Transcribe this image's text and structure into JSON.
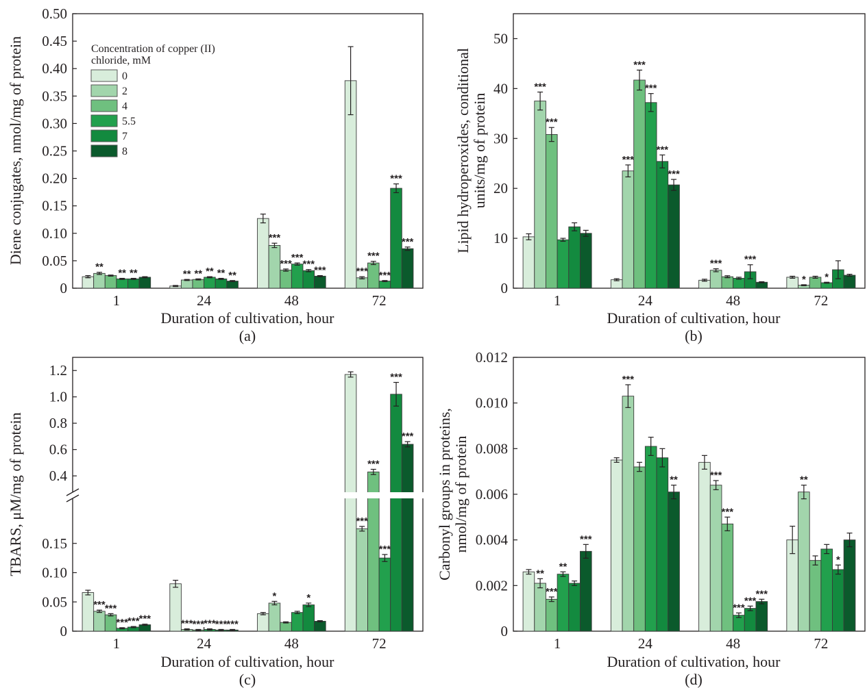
{
  "legend": {
    "title_line1": "Concentration of copper (II)",
    "title_line2": "chloride, mM",
    "entries": [
      "0",
      "2",
      "4",
      "5.5",
      "7",
      "8"
    ]
  },
  "colors": [
    "#d8eddb",
    "#a2d5ac",
    "#6fc07f",
    "#22a04d",
    "#138a3f",
    "#0b5a2c"
  ],
  "chart_data": [
    {
      "id": "a",
      "type": "bar",
      "panel_label": "(a)",
      "xlabel": "Duration of cultivation, hour",
      "ylabel": "Diene conjugates, nmol/mg of protein",
      "categories": [
        "1",
        "24",
        "48",
        "72"
      ],
      "ylim": [
        0,
        0.5
      ],
      "yticks": [
        0,
        0.05,
        0.1,
        0.15,
        0.2,
        0.25,
        0.3,
        0.35,
        0.4,
        0.45,
        0.5
      ],
      "ytick_labels": [
        "0",
        "0.05",
        "0.10",
        "0.15",
        "0.20",
        "0.25",
        "0.30",
        "0.35",
        "0.40",
        "0.45",
        "0.50"
      ],
      "series": [
        {
          "name": "0",
          "values": [
            0.021,
            0.004,
            0.127,
            0.378
          ],
          "errors": [
            0.002,
            0.001,
            0.008,
            0.062
          ],
          "marks": [
            "",
            "",
            "",
            ""
          ]
        },
        {
          "name": "2",
          "values": [
            0.027,
            0.015,
            0.078,
            0.019
          ],
          "errors": [
            0.002,
            0.001,
            0.004,
            0.002
          ],
          "marks": [
            "**",
            "**",
            "***",
            "***"
          ]
        },
        {
          "name": "4",
          "values": [
            0.023,
            0.016,
            0.033,
            0.046
          ],
          "errors": [
            0.001,
            0.001,
            0.002,
            0.003
          ],
          "marks": [
            "",
            "**",
            "***",
            "***"
          ]
        },
        {
          "name": "5.5",
          "values": [
            0.017,
            0.02,
            0.044,
            0.013
          ],
          "errors": [
            0.001,
            0.001,
            0.002,
            0.001
          ],
          "marks": [
            "**",
            "**",
            "***",
            "***"
          ]
        },
        {
          "name": "7",
          "values": [
            0.017,
            0.017,
            0.032,
            0.182
          ],
          "errors": [
            0.001,
            0.001,
            0.002,
            0.008
          ],
          "marks": [
            "**",
            "**",
            "***",
            "***"
          ]
        },
        {
          "name": "8",
          "values": [
            0.02,
            0.013,
            0.022,
            0.072
          ],
          "errors": [
            0.001,
            0.001,
            0.001,
            0.003
          ],
          "marks": [
            "",
            "**",
            "***",
            "***"
          ]
        }
      ]
    },
    {
      "id": "b",
      "type": "bar",
      "panel_label": "(b)",
      "xlabel": "Duration of cultivation, hour",
      "ylabel_line1": "Lipid hydroperoxides, conditional",
      "ylabel_line2": "units/mg of protein",
      "categories": [
        "1",
        "24",
        "48",
        "72"
      ],
      "ylim": [
        0,
        55
      ],
      "yticks": [
        0,
        10,
        20,
        30,
        40,
        50
      ],
      "ytick_labels": [
        "0",
        "10",
        "20",
        "30",
        "40",
        "50"
      ],
      "series": [
        {
          "name": "0",
          "values": [
            10.3,
            1.7,
            1.6,
            2.2
          ],
          "errors": [
            0.6,
            0.2,
            0.2,
            0.2
          ],
          "marks": [
            "",
            "",
            "",
            ""
          ]
        },
        {
          "name": "2",
          "values": [
            37.5,
            23.5,
            3.6,
            0.6
          ],
          "errors": [
            1.8,
            1.2,
            0.3,
            0.1
          ],
          "marks": [
            "***",
            "***",
            "***",
            "*"
          ]
        },
        {
          "name": "4",
          "values": [
            30.8,
            41.7,
            2.3,
            2.2
          ],
          "errors": [
            1.4,
            2.0,
            0.2,
            0.2
          ],
          "marks": [
            "***",
            "***",
            "",
            ""
          ]
        },
        {
          "name": "5.5",
          "values": [
            9.7,
            37.2,
            2.0,
            1.1
          ],
          "errors": [
            0.3,
            1.8,
            0.2,
            0.1
          ],
          "marks": [
            "",
            "***",
            "",
            "*"
          ]
        },
        {
          "name": "7",
          "values": [
            12.3,
            25.4,
            3.3,
            3.7
          ],
          "errors": [
            0.8,
            1.3,
            1.4,
            1.8
          ],
          "marks": [
            "",
            "***",
            "***",
            ""
          ]
        },
        {
          "name": "8",
          "values": [
            11.0,
            20.7,
            1.2,
            2.6
          ],
          "errors": [
            0.6,
            1.1,
            0.1,
            0.2
          ],
          "marks": [
            "",
            "***",
            "",
            ""
          ]
        }
      ]
    },
    {
      "id": "c",
      "type": "bar",
      "panel_label": "(c)",
      "xlabel": "Duration of cultivation, hour",
      "ylabel": "TBARS, μM/mg of protein",
      "categories": [
        "1",
        "24",
        "48",
        "72"
      ],
      "axis_break": true,
      "lower_ylim": [
        0,
        0.2
      ],
      "upper_ylim": [
        0.25,
        1.3
      ],
      "lower_yticks": [
        0,
        0.05,
        0.1,
        0.15
      ],
      "lower_ytick_labels": [
        "0",
        "0.05",
        "0.10",
        "0.15"
      ],
      "upper_yticks": [
        0.4,
        0.6,
        0.8,
        1.0,
        1.2
      ],
      "upper_ytick_labels": [
        "0.4",
        "0.6",
        "0.8",
        "1.0",
        "1.2"
      ],
      "series": [
        {
          "name": "0",
          "values": [
            0.066,
            0.081,
            0.03,
            1.17
          ],
          "errors": [
            0.004,
            0.006,
            0.002,
            0.02
          ],
          "marks": [
            "",
            "",
            "",
            ""
          ]
        },
        {
          "name": "2",
          "values": [
            0.034,
            0.003,
            0.048,
            0.175
          ],
          "errors": [
            0.002,
            0.001,
            0.003,
            0.004
          ],
          "marks": [
            "***",
            "***",
            "*",
            "***"
          ]
        },
        {
          "name": "4",
          "values": [
            0.028,
            0.002,
            0.015,
            0.43
          ],
          "errors": [
            0.002,
            0.001,
            0.001,
            0.02
          ],
          "marks": [
            "***",
            "***",
            "",
            "***"
          ]
        },
        {
          "name": "5.5",
          "values": [
            0.005,
            0.003,
            0.032,
            0.125
          ],
          "errors": [
            0.001,
            0.001,
            0.002,
            0.006
          ],
          "marks": [
            "***",
            "***",
            "",
            "***"
          ]
        },
        {
          "name": "7",
          "values": [
            0.007,
            0.002,
            0.045,
            1.02
          ],
          "errors": [
            0.001,
            0.001,
            0.003,
            0.09
          ],
          "marks": [
            "***",
            "***",
            "*",
            "***"
          ]
        },
        {
          "name": "8",
          "values": [
            0.011,
            0.002,
            0.017,
            0.64
          ],
          "errors": [
            0.001,
            0.001,
            0.001,
            0.02
          ],
          "marks": [
            "***",
            "***",
            "",
            "***"
          ]
        }
      ]
    },
    {
      "id": "d",
      "type": "bar",
      "panel_label": "(d)",
      "xlabel": "Duration of cultivation, hour",
      "ylabel_line1": "Carbonyl groups in proteins,",
      "ylabel_line2": "nmol/mg of protein",
      "categories": [
        "1",
        "24",
        "48",
        "72"
      ],
      "ylim": [
        0,
        0.012
      ],
      "yticks": [
        0,
        0.002,
        0.004,
        0.006,
        0.008,
        0.01,
        0.012
      ],
      "ytick_labels": [
        "0",
        "0.002",
        "0.004",
        "0.006",
        "0.008",
        "0.010",
        "0.012"
      ],
      "series": [
        {
          "name": "0",
          "values": [
            0.0026,
            0.0075,
            0.0074,
            0.004
          ],
          "errors": [
            0.0001,
            0.0001,
            0.0003,
            0.0006
          ],
          "marks": [
            "",
            "",
            "",
            ""
          ]
        },
        {
          "name": "2",
          "values": [
            0.0021,
            0.0103,
            0.0064,
            0.0061
          ],
          "errors": [
            0.0002,
            0.0005,
            0.0002,
            0.0003
          ],
          "marks": [
            "**",
            "***",
            "***",
            "**"
          ]
        },
        {
          "name": "4",
          "values": [
            0.0014,
            0.0072,
            0.0047,
            0.0031
          ],
          "errors": [
            0.0001,
            0.0002,
            0.0003,
            0.0002
          ],
          "marks": [
            "***",
            "",
            "***",
            ""
          ]
        },
        {
          "name": "5.5",
          "values": [
            0.0025,
            0.0081,
            0.0007,
            0.0036
          ],
          "errors": [
            0.0001,
            0.0004,
            0.0001,
            0.0002
          ],
          "marks": [
            "**",
            "",
            "***",
            ""
          ]
        },
        {
          "name": "7",
          "values": [
            0.0021,
            0.0076,
            0.001,
            0.0027
          ],
          "errors": [
            0.0001,
            0.0004,
            0.0001,
            0.0002
          ],
          "marks": [
            "",
            "",
            "***",
            "*"
          ]
        },
        {
          "name": "8",
          "values": [
            0.0035,
            0.0061,
            0.0013,
            0.004
          ],
          "errors": [
            0.0003,
            0.0003,
            0.0001,
            0.0003
          ],
          "marks": [
            "***",
            "**",
            "***",
            ""
          ]
        }
      ]
    }
  ]
}
